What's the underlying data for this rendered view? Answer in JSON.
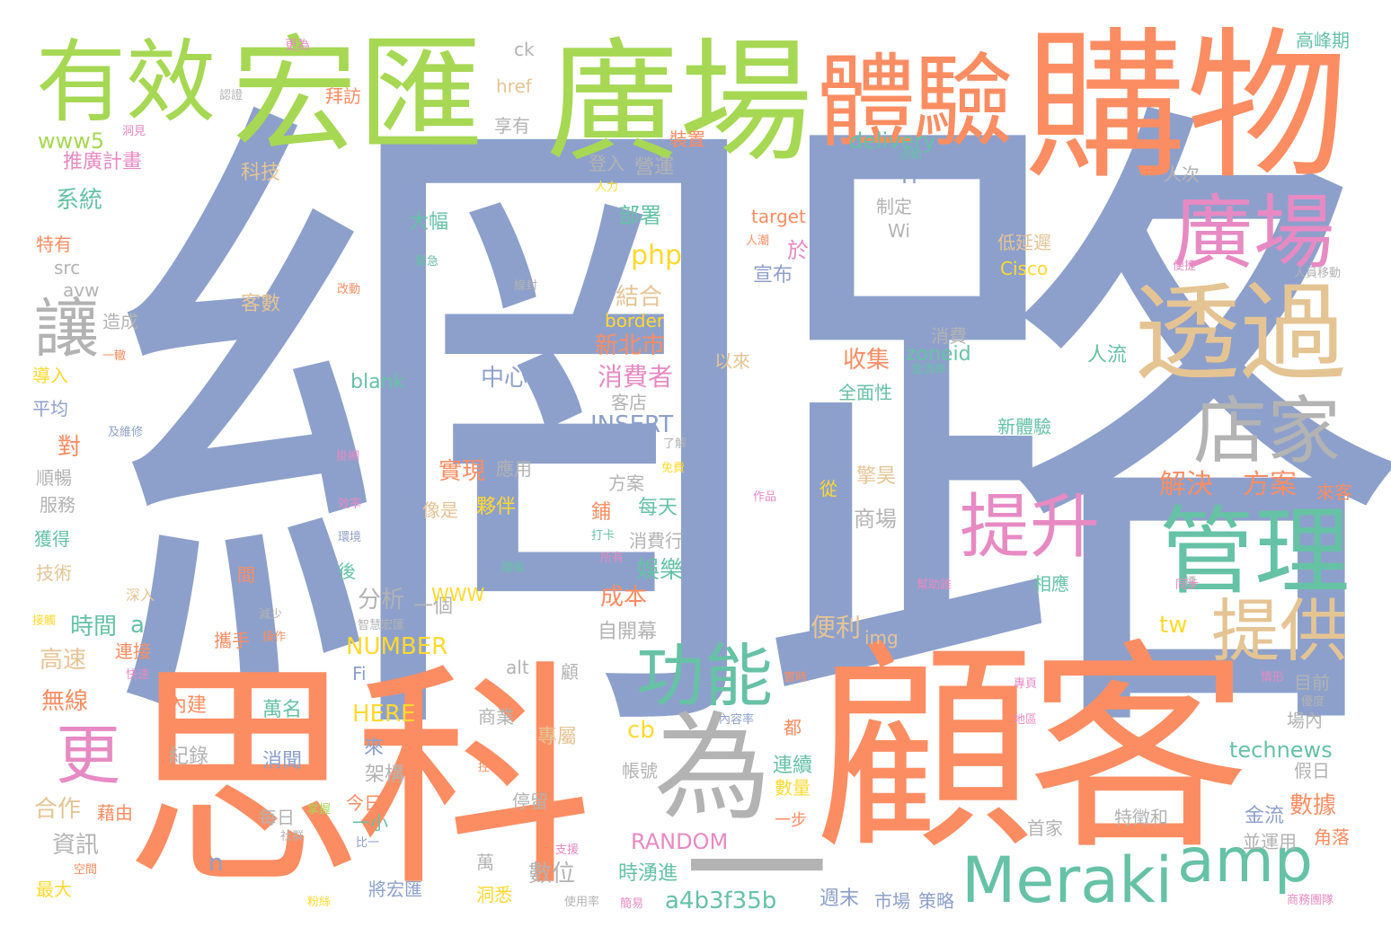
{
  "palette": {
    "blue": "#8da0cb",
    "orange": "#fc8d62",
    "green": "#a6d854",
    "teal": "#66c2a5",
    "pink": "#e78ac3",
    "tan": "#e5c494",
    "yellow": "#ffd92f",
    "gray": "#b3b3b3"
  },
  "words": [
    {
      "text": "網路",
      "color": "blue"
    },
    {
      "text": "顧客",
      "color": "orange"
    },
    {
      "text": "思科",
      "color": "orange"
    },
    {
      "text": "購物",
      "color": "orange"
    },
    {
      "text": "廣場",
      "color": "green"
    },
    {
      "text": "宏匯",
      "color": "green"
    },
    {
      "text": "有效",
      "color": "green"
    },
    {
      "text": "體驗",
      "color": "orange"
    },
    {
      "text": "廣場",
      "color": "pink"
    },
    {
      "text": "透過",
      "color": "tan"
    },
    {
      "text": "店家",
      "color": "gray"
    },
    {
      "text": "管理",
      "color": "teal"
    },
    {
      "text": "提升",
      "color": "pink"
    },
    {
      "text": "提供",
      "color": "tan"
    },
    {
      "text": "Meraki",
      "color": "teal"
    },
    {
      "text": "amp",
      "color": "teal"
    },
    {
      "text": "為",
      "color": "gray"
    },
    {
      "text": "一",
      "color": "gray"
    },
    {
      "text": "功能",
      "color": "teal"
    },
    {
      "text": "更",
      "color": "pink"
    },
    {
      "text": "讓",
      "color": "gray"
    },
    {
      "text": "www5",
      "color": "green"
    },
    {
      "text": "系統",
      "color": "teal"
    },
    {
      "text": "推廣計畫",
      "color": "pink"
    },
    {
      "text": "科技",
      "color": "tan"
    },
    {
      "text": "特有",
      "color": "orange"
    },
    {
      "text": "src",
      "color": "gray"
    },
    {
      "text": "avw",
      "color": "gray"
    },
    {
      "text": "客數",
      "color": "tan"
    },
    {
      "text": "造成",
      "color": "gray"
    },
    {
      "text": "導入",
      "color": "yellow"
    },
    {
      "text": "平均",
      "color": "blue"
    },
    {
      "text": "對",
      "color": "orange"
    },
    {
      "text": "順暢",
      "color": "gray"
    },
    {
      "text": "服務",
      "color": "gray"
    },
    {
      "text": "獲得",
      "color": "teal"
    },
    {
      "text": "技術",
      "color": "tan"
    },
    {
      "text": "高速",
      "color": "tan"
    },
    {
      "text": "時間",
      "color": "teal"
    },
    {
      "text": "a",
      "color": "teal"
    },
    {
      "text": "無線",
      "color": "orange"
    },
    {
      "text": "連接",
      "color": "orange"
    },
    {
      "text": "合作",
      "color": "tan"
    },
    {
      "text": "藉由",
      "color": "orange"
    },
    {
      "text": "資訊",
      "color": "gray"
    },
    {
      "text": "最大",
      "color": "yellow"
    },
    {
      "text": "內建",
      "color": "orange"
    },
    {
      "text": "萬名",
      "color": "teal"
    },
    {
      "text": "紀錄",
      "color": "gray"
    },
    {
      "text": "消聞",
      "color": "blue"
    },
    {
      "text": "拜訪",
      "color": "orange"
    },
    {
      "text": "享有",
      "color": "gray"
    },
    {
      "text": "href",
      "color": "tan"
    },
    {
      "text": "ck",
      "color": "gray"
    },
    {
      "text": "裝置",
      "color": "orange"
    },
    {
      "text": "delivery",
      "color": "teal"
    },
    {
      "text": "營運",
      "color": "gray"
    },
    {
      "text": "登入",
      "color": "gray"
    },
    {
      "text": "IT",
      "color": "blue"
    },
    {
      "text": "部署",
      "color": "teal"
    },
    {
      "text": "大幅",
      "color": "teal"
    },
    {
      "text": "target",
      "color": "orange"
    },
    {
      "text": "制定",
      "color": "gray"
    },
    {
      "text": "Wi",
      "color": "gray"
    },
    {
      "text": "於",
      "color": "pink"
    },
    {
      "text": "宣布",
      "color": "blue"
    },
    {
      "text": "php",
      "color": "yellow"
    },
    {
      "text": "結合",
      "color": "tan"
    },
    {
      "text": "border",
      "color": "yellow"
    },
    {
      "text": "新北市",
      "color": "orange"
    },
    {
      "text": "消費者",
      "color": "pink"
    },
    {
      "text": "中心",
      "color": "blue"
    },
    {
      "text": "blank",
      "color": "teal"
    },
    {
      "text": "收集",
      "color": "orange"
    },
    {
      "text": "zoneid",
      "color": "teal"
    },
    {
      "text": "以來",
      "color": "tan"
    },
    {
      "text": "消費",
      "color": "gray"
    },
    {
      "text": "人流",
      "color": "teal"
    },
    {
      "text": "全面性",
      "color": "teal"
    },
    {
      "text": "INSERT",
      "color": "blue"
    },
    {
      "text": "使",
      "color": "blue"
    },
    {
      "text": "客店",
      "color": "gray"
    },
    {
      "text": "實現",
      "color": "orange"
    },
    {
      "text": "應用",
      "color": "gray"
    },
    {
      "text": "新體驗",
      "color": "teal"
    },
    {
      "text": "解決",
      "color": "orange"
    },
    {
      "text": "方案",
      "color": "orange"
    },
    {
      "text": "來客",
      "color": "orange"
    },
    {
      "text": "像是",
      "color": "tan"
    },
    {
      "text": "夥伴",
      "color": "yellow"
    },
    {
      "text": "方案",
      "color": "gray"
    },
    {
      "text": "每天",
      "color": "teal"
    },
    {
      "text": "商場",
      "color": "gray"
    },
    {
      "text": "擎昊",
      "color": "tan"
    },
    {
      "text": "從",
      "color": "yellow"
    },
    {
      "text": "分析",
      "color": "gray"
    },
    {
      "text": "一個",
      "color": "gray"
    },
    {
      "text": "娛樂",
      "color": "teal"
    },
    {
      "text": "成本",
      "color": "orange"
    },
    {
      "text": "WWW",
      "color": "yellow"
    },
    {
      "text": "NUMBER",
      "color": "yellow"
    },
    {
      "text": "消費行",
      "color": "gray"
    },
    {
      "text": "自開幕",
      "color": "gray"
    },
    {
      "text": "便利",
      "color": "tan"
    },
    {
      "text": "img",
      "color": "tan"
    },
    {
      "text": "tw",
      "color": "yellow"
    },
    {
      "text": "HERE",
      "color": "yellow"
    },
    {
      "text": "商業",
      "color": "gray"
    },
    {
      "text": "專屬",
      "color": "tan"
    },
    {
      "text": "Fi",
      "color": "blue"
    },
    {
      "text": "alt",
      "color": "gray"
    },
    {
      "text": "cb",
      "color": "yellow"
    },
    {
      "text": "來",
      "color": "blue"
    },
    {
      "text": "架構",
      "color": "gray"
    },
    {
      "text": "今日",
      "color": "orange"
    },
    {
      "text": "一小",
      "color": "teal"
    },
    {
      "text": "每日",
      "color": "gray"
    },
    {
      "text": "停留",
      "color": "gray"
    },
    {
      "text": "帳號",
      "color": "gray"
    },
    {
      "text": "連續",
      "color": "teal"
    },
    {
      "text": "數量",
      "color": "yellow"
    },
    {
      "text": "technews",
      "color": "teal"
    },
    {
      "text": "假日",
      "color": "gray"
    },
    {
      "text": "數據",
      "color": "orange"
    },
    {
      "text": "RANDOM",
      "color": "pink"
    },
    {
      "text": "n",
      "color": "blue"
    },
    {
      "text": "數位",
      "color": "gray"
    },
    {
      "text": "萬",
      "color": "gray"
    },
    {
      "text": "洞悉",
      "color": "yellow"
    },
    {
      "text": "時湧進",
      "color": "teal"
    },
    {
      "text": "將宏匯",
      "color": "blue"
    },
    {
      "text": "a4b3f35b",
      "color": "teal"
    },
    {
      "text": "週末",
      "color": "blue"
    },
    {
      "text": "市場",
      "color": "blue"
    },
    {
      "text": "策略",
      "color": "blue"
    },
    {
      "text": "首家",
      "color": "gray"
    },
    {
      "text": "特徵和",
      "color": "gray"
    },
    {
      "text": "金流",
      "color": "blue"
    },
    {
      "text": "並運用",
      "color": "gray"
    },
    {
      "text": "角落",
      "color": "orange"
    },
    {
      "text": "Cisco",
      "color": "yellow"
    },
    {
      "text": "低延遲",
      "color": "tan"
    },
    {
      "text": "人次",
      "color": "gray"
    },
    {
      "text": "高峰期",
      "color": "teal"
    },
    {
      "text": "目前",
      "color": "gray"
    },
    {
      "text": "場內",
      "color": "gray"
    },
    {
      "text": "相應",
      "color": "teal"
    },
    {
      "text": "後",
      "color": "teal"
    },
    {
      "text": "間",
      "color": "orange"
    },
    {
      "text": "鋪",
      "color": "orange"
    },
    {
      "text": "顧",
      "color": "gray"
    },
    {
      "text": "都",
      "color": "orange"
    },
    {
      "text": "一步",
      "color": "orange"
    },
    {
      "text": "攜手",
      "color": "orange"
    },
    {
      "text": "深入",
      "color": "tan"
    },
    {
      "text": "更為",
      "color": "pink"
    },
    {
      "text": "認證",
      "color": "gray"
    },
    {
      "text": "洞見",
      "color": "pink"
    },
    {
      "text": "活動",
      "color": "teal"
    },
    {
      "text": "人力",
      "color": "yellow"
    },
    {
      "text": "人潮",
      "color": "orange"
    },
    {
      "text": "便捷",
      "color": "pink"
    },
    {
      "text": "人員移動",
      "color": "gray"
    },
    {
      "text": "改動",
      "color": "orange"
    },
    {
      "text": "緊急",
      "color": "teal"
    },
    {
      "text": "線封",
      "color": "gray"
    },
    {
      "text": "一轍",
      "color": "orange"
    },
    {
      "text": "金流串",
      "color": "teal"
    },
    {
      "text": "及維修",
      "color": "blue"
    },
    {
      "text": "了解",
      "color": "gray"
    },
    {
      "text": "免費",
      "color": "yellow"
    },
    {
      "text": "掛網",
      "color": "pink"
    },
    {
      "text": "作品",
      "color": "pink"
    },
    {
      "text": "效率",
      "color": "pink"
    },
    {
      "text": "環境",
      "color": "blue"
    },
    {
      "text": "打卡",
      "color": "teal"
    },
    {
      "text": "所有",
      "color": "pink"
    },
    {
      "text": "層級",
      "color": "teal"
    },
    {
      "text": "幫助誰",
      "color": "pink"
    },
    {
      "text": "同步",
      "color": "pink"
    },
    {
      "text": "操作",
      "color": "orange"
    },
    {
      "text": "減少",
      "color": "gray"
    },
    {
      "text": "智慧宏匯",
      "color": "gray"
    },
    {
      "text": "快速",
      "color": "pink"
    },
    {
      "text": "接觸",
      "color": "yellow"
    },
    {
      "text": "實時",
      "color": "orange"
    },
    {
      "text": "專頁",
      "color": "pink"
    },
    {
      "text": "情形",
      "color": "pink"
    },
    {
      "text": "優度",
      "color": "gray"
    },
    {
      "text": "內容率",
      "color": "blue"
    },
    {
      "text": "地區",
      "color": "pink"
    },
    {
      "text": "控制",
      "color": "orange"
    },
    {
      "text": "掌握",
      "color": "green"
    },
    {
      "text": "社群",
      "color": "gray"
    },
    {
      "text": "比一",
      "color": "blue"
    },
    {
      "text": "支援",
      "color": "pink"
    },
    {
      "text": "空間",
      "color": "orange"
    },
    {
      "text": "粉絲",
      "color": "yellow"
    },
    {
      "text": "使用率",
      "color": "gray"
    },
    {
      "text": "簡易",
      "color": "pink"
    },
    {
      "text": "商務團隊",
      "color": "pink"
    },
    {
      "text": "標",
      "color": "gray"
    }
  ]
}
